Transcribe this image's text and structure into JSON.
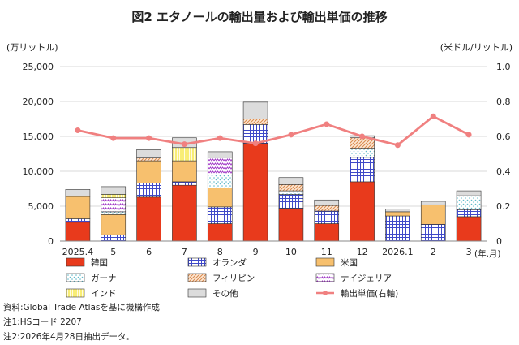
{
  "chart_data": {
    "type": "bar",
    "title": "図2 エタノールの輸出量および輸出単価の推移",
    "left_unit": "(万リットル)",
    "right_unit": "(米ドル/リットル)",
    "x_unit": "(年.月)",
    "categories": [
      "2025.4",
      "5",
      "6",
      "7",
      "8",
      "9",
      "10",
      "11",
      "12",
      "2026.1",
      "2",
      "3"
    ],
    "left_ticks": [
      "0",
      "5,000",
      "10,000",
      "15,000",
      "20,000",
      "25,000"
    ],
    "right_ticks": [
      "0",
      "0.2",
      "0.4",
      "0.6",
      "0.8",
      "1.0"
    ],
    "ylim_left": [
      0,
      25000
    ],
    "ylim_right": [
      0,
      1.0
    ],
    "grid": true,
    "legend_position": "bottom",
    "series": [
      {
        "name": "韓国",
        "color": "#e83a1c",
        "pattern": "solid",
        "values": [
          2700,
          0,
          6300,
          8000,
          2500,
          14000,
          4700,
          2500,
          8500,
          0,
          0,
          3500
        ]
      },
      {
        "name": "オランダ",
        "color": "#3f49c8",
        "pattern": "grid",
        "values": [
          500,
          900,
          2000,
          500,
          2400,
          2700,
          2000,
          1800,
          3500,
          3600,
          2400,
          1000
        ]
      },
      {
        "name": "米国",
        "color": "#f7c06e",
        "pattern": "solid",
        "values": [
          3200,
          2900,
          3200,
          3000,
          2700,
          0,
          0,
          0,
          0,
          600,
          2800,
          0
        ]
      },
      {
        "name": "ガーナ",
        "color": "#5fb9c9",
        "pattern": "dots",
        "values": [
          0,
          400,
          0,
          0,
          1900,
          0,
          500,
          0,
          1300,
          0,
          0,
          2000
        ]
      },
      {
        "name": "フィリピン",
        "color": "#d98a4e",
        "pattern": "hatch",
        "values": [
          0,
          0,
          400,
          0,
          0,
          800,
          900,
          800,
          1500,
          0,
          0,
          0
        ]
      },
      {
        "name": "ナイジェリア",
        "color": "#a23cc7",
        "pattern": "zigzag",
        "values": [
          0,
          2000,
          0,
          0,
          2500,
          0,
          0,
          0,
          0,
          0,
          0,
          0
        ]
      },
      {
        "name": "インド",
        "color": "#f5e63c",
        "pattern": "vertical",
        "values": [
          0,
          500,
          0,
          1900,
          0,
          0,
          0,
          0,
          0,
          0,
          0,
          0
        ]
      },
      {
        "name": "その他",
        "color": "#dcdcdc",
        "pattern": "solid",
        "values": [
          1000,
          1100,
          1200,
          1400,
          800,
          2400,
          1000,
          800,
          300,
          400,
          500,
          700
        ]
      }
    ],
    "line": {
      "name": "輸出単価(右軸)",
      "color": "#f08080",
      "values": [
        0.635,
        0.59,
        0.59,
        0.555,
        0.59,
        0.56,
        0.61,
        0.67,
        0.6,
        0.55,
        0.715,
        0.61
      ]
    }
  },
  "notes": [
    "資料:Global Trade Atlasを基に機構作成",
    "注1:HSコード 2207",
    "注2:2026年4月28日抽出データ。"
  ]
}
